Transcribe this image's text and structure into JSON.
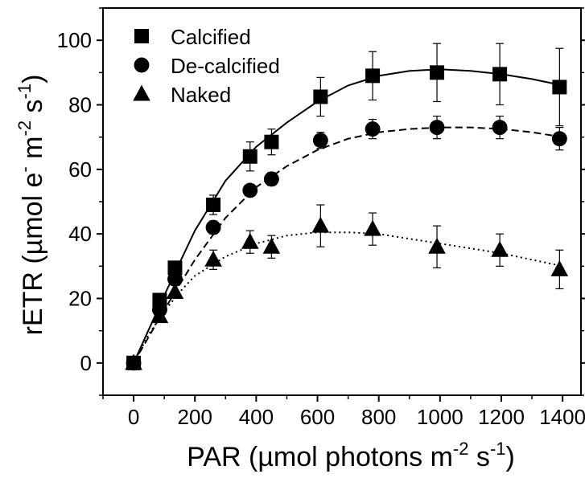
{
  "chart_data": {
    "type": "scatter",
    "xlabel": {
      "main": "PAR (",
      "mu": "µ",
      "rest": "mol photons m",
      "sup1": "-2",
      "mid": " s",
      "sup2": "-1",
      "end": ")"
    },
    "ylabel": {
      "main": "rETR (",
      "mu": "µ",
      "rest": "mol e",
      "sup0": "-",
      "rest2": " m",
      "sup1": "-2",
      "mid": " s",
      "sup2": "-1",
      "end": ")"
    },
    "xlim": [
      -100,
      1460
    ],
    "ylim": [
      -10,
      110
    ],
    "xticks": [
      0,
      200,
      400,
      600,
      800,
      1000,
      1200,
      1400
    ],
    "yticks": [
      0,
      20,
      40,
      60,
      80,
      100
    ],
    "grid": false,
    "legend_position": "top-left",
    "series": [
      {
        "name": "Calcified",
        "marker": "square",
        "line": "solid",
        "x": [
          0,
          85,
          135,
          260,
          380,
          450,
          610,
          780,
          990,
          1195,
          1390
        ],
        "y": [
          0,
          19.5,
          29.5,
          49,
          64,
          68.5,
          82.5,
          89,
          90,
          89.5,
          85.5
        ],
        "err": [
          0,
          1.5,
          2,
          3,
          4.5,
          4,
          6,
          7.5,
          9,
          9.5,
          12
        ],
        "fit": [
          [
            0,
            0
          ],
          [
            100,
            21
          ],
          [
            200,
            41
          ],
          [
            300,
            56.5
          ],
          [
            400,
            67
          ],
          [
            500,
            74.5
          ],
          [
            600,
            81
          ],
          [
            700,
            86
          ],
          [
            800,
            89
          ],
          [
            900,
            90.5
          ],
          [
            1000,
            91
          ],
          [
            1100,
            90.5
          ],
          [
            1200,
            89.5
          ],
          [
            1300,
            88
          ],
          [
            1400,
            86
          ]
        ]
      },
      {
        "name": "De-calcified",
        "marker": "circle",
        "line": "dashed",
        "x": [
          0,
          85,
          135,
          260,
          380,
          450,
          610,
          780,
          990,
          1195,
          1390
        ],
        "y": [
          0,
          16.5,
          26,
          42,
          53.5,
          57,
          69,
          72.5,
          73,
          73,
          69.5
        ],
        "err": [
          0,
          1.5,
          2,
          2,
          1.5,
          2,
          2.5,
          3,
          3.5,
          3.5,
          3.5
        ],
        "fit": [
          [
            0,
            0
          ],
          [
            100,
            16.5
          ],
          [
            200,
            32
          ],
          [
            300,
            45
          ],
          [
            400,
            54.5
          ],
          [
            500,
            61
          ],
          [
            600,
            66
          ],
          [
            700,
            69.5
          ],
          [
            800,
            71.5
          ],
          [
            900,
            72.5
          ],
          [
            1000,
            73
          ],
          [
            1100,
            73
          ],
          [
            1200,
            72.5
          ],
          [
            1300,
            71.5
          ],
          [
            1400,
            70
          ]
        ]
      },
      {
        "name": "Naked",
        "marker": "triangle",
        "line": "dotted",
        "x": [
          0,
          85,
          135,
          260,
          380,
          450,
          610,
          780,
          990,
          1195,
          1390
        ],
        "y": [
          0,
          14.5,
          22,
          32,
          37.5,
          36,
          42.5,
          41.5,
          36,
          35,
          29
        ],
        "err": [
          0,
          1.5,
          2,
          3,
          3.5,
          3.5,
          6.5,
          5,
          6.5,
          5,
          6
        ],
        "fit": [
          [
            0,
            0
          ],
          [
            50,
            9
          ],
          [
            100,
            16
          ],
          [
            150,
            22
          ],
          [
            200,
            27
          ],
          [
            300,
            33
          ],
          [
            400,
            37
          ],
          [
            500,
            39.5
          ],
          [
            600,
            40.5
          ],
          [
            700,
            40.5
          ],
          [
            800,
            40
          ],
          [
            900,
            38.5
          ],
          [
            1000,
            37
          ],
          [
            1100,
            35.5
          ],
          [
            1200,
            34
          ],
          [
            1300,
            32
          ],
          [
            1400,
            30
          ]
        ]
      }
    ]
  }
}
